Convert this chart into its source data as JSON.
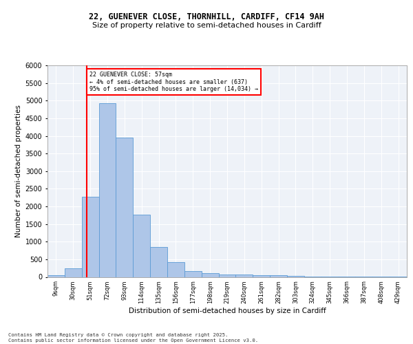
{
  "title1": "22, GUENEVER CLOSE, THORNHILL, CARDIFF, CF14 9AH",
  "title2": "Size of property relative to semi-detached houses in Cardiff",
  "xlabel": "Distribution of semi-detached houses by size in Cardiff",
  "ylabel": "Number of semi-detached properties",
  "footer1": "Contains HM Land Registry data © Crown copyright and database right 2025.",
  "footer2": "Contains public sector information licensed under the Open Government Licence v3.0.",
  "bin_labels": [
    "9sqm",
    "30sqm",
    "51sqm",
    "72sqm",
    "93sqm",
    "114sqm",
    "135sqm",
    "156sqm",
    "177sqm",
    "198sqm",
    "219sqm",
    "240sqm",
    "261sqm",
    "282sqm",
    "303sqm",
    "324sqm",
    "345sqm",
    "366sqm",
    "387sqm",
    "408sqm",
    "429sqm"
  ],
  "bin_values": [
    50,
    250,
    2270,
    4930,
    3960,
    1760,
    840,
    410,
    175,
    110,
    75,
    65,
    55,
    45,
    20,
    15,
    15,
    10,
    5,
    5,
    5
  ],
  "bar_color": "#aec6e8",
  "bar_edge_color": "#5b9bd5",
  "vline_color": "red",
  "annotation_title": "22 GUENEVER CLOSE: 57sqm",
  "annotation_line1": "← 4% of semi-detached houses are smaller (637)",
  "annotation_line2": "95% of semi-detached houses are larger (14,034) →",
  "ylim": [
    0,
    6000
  ],
  "yticks": [
    0,
    500,
    1000,
    1500,
    2000,
    2500,
    3000,
    3500,
    4000,
    4500,
    5000,
    5500,
    6000
  ],
  "bg_color": "#eef2f8",
  "grid_color": "white"
}
